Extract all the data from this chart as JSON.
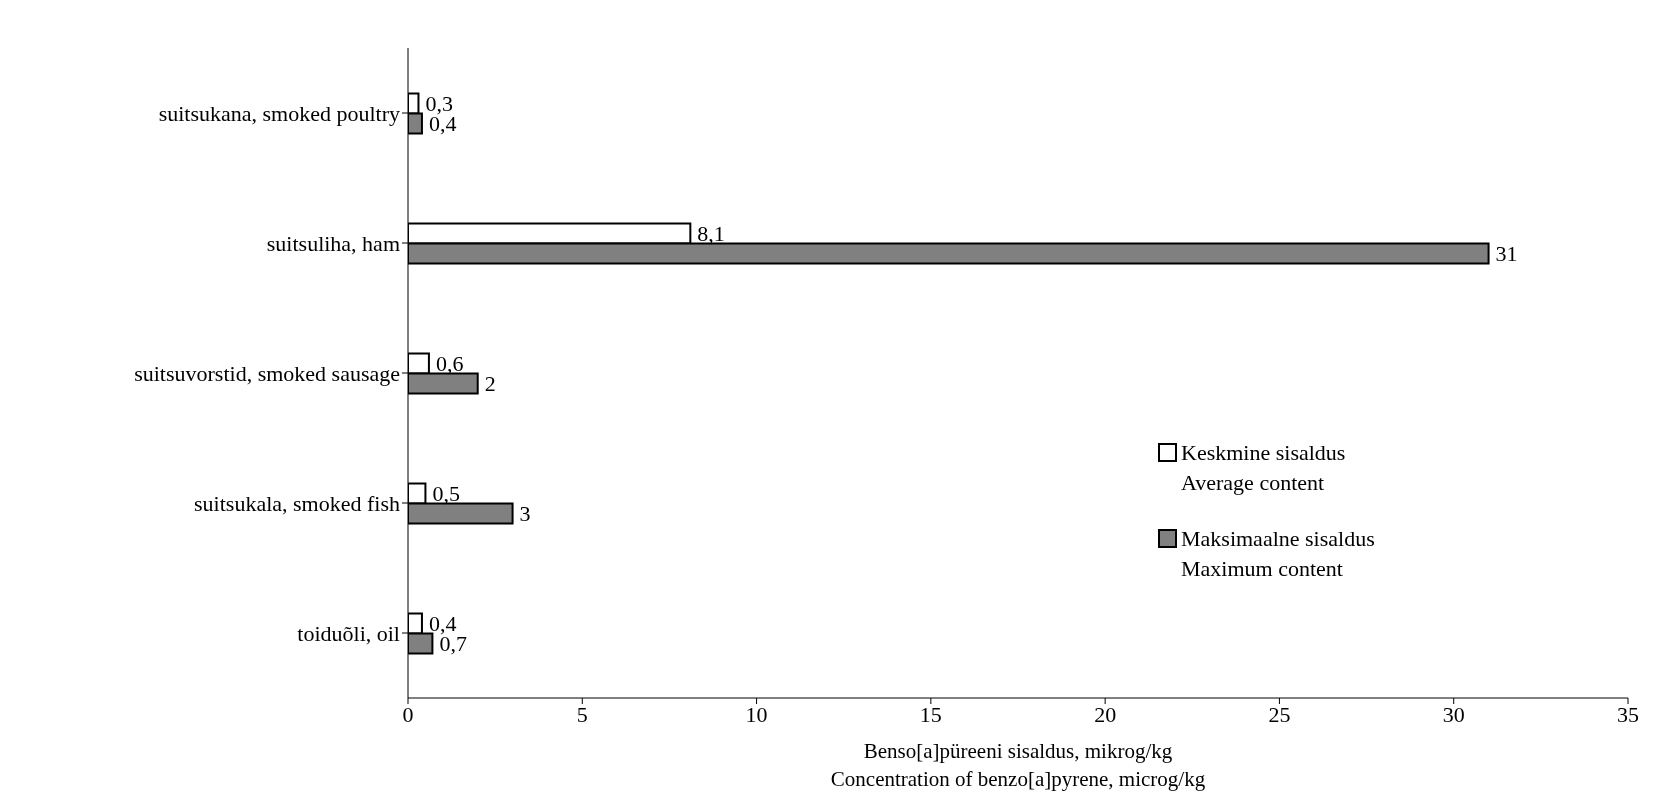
{
  "chart_data": {
    "type": "bar",
    "orientation": "horizontal",
    "xlabel": "Benso[a]püreeni sisaldus, mikrog/kg\nConcentration of benzo[a]pyrene, microg/kg",
    "categories": [
      "suitsukana, smoked poultry",
      "suitsuliha, ham",
      "suitsuvorstid, smoked sausage",
      "suitsukala, smoked fish",
      "toiduõli, oil"
    ],
    "series": [
      {
        "name": "Keskmine sisaldus Average content",
        "color": "#ffffff",
        "values": [
          0.3,
          8.1,
          0.6,
          0.5,
          0.4
        ],
        "value_labels": [
          "0,3",
          "8,1",
          "0,6",
          "0,5",
          "0,4"
        ]
      },
      {
        "name": "Maksimaalne sisaldus Maximum content",
        "color": "#808080",
        "values": [
          0.4,
          31,
          2,
          3,
          0.7
        ],
        "value_labels": [
          "0,4",
          "31",
          "2",
          "3",
          "0,7"
        ]
      }
    ],
    "xlim": [
      0,
      35
    ],
    "xticks": [
      0,
      5,
      10,
      15,
      20,
      25,
      30,
      35
    ],
    "legend": "right"
  }
}
